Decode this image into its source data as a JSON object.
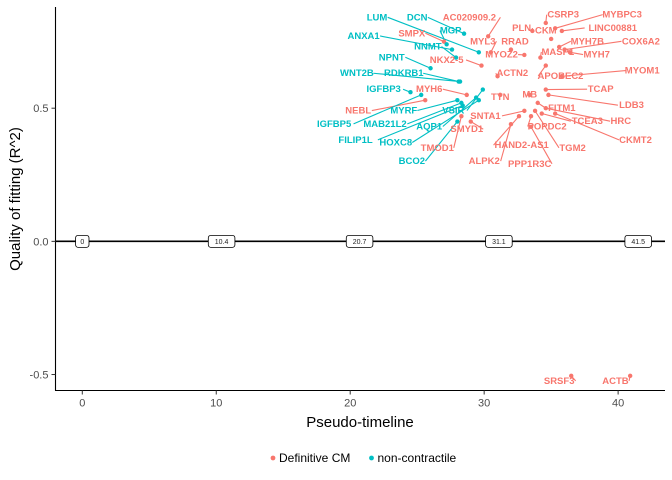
{
  "chart_data": {
    "type": "scatter",
    "xlabel": "Pseudo-timeline",
    "ylabel": "Quality of fitting (R^2)",
    "xlim": [
      -2,
      43.5
    ],
    "ylim": [
      -0.56,
      0.88
    ],
    "x_ticks": [
      0,
      10,
      20,
      30,
      40
    ],
    "y_ticks": [
      -0.5,
      0.0,
      0.5
    ],
    "y_tick_labels": [
      "-0.5",
      "0.0",
      "0.5"
    ],
    "grid": false,
    "legend_position": "bottom",
    "colors": {
      "Definitive CM": "#f8766d",
      "non-contractile": "#00bfc4"
    },
    "reference_line": {
      "y": 0,
      "markers": [
        {
          "x": 0,
          "label": "0"
        },
        {
          "x": 10.4,
          "label": "10.4"
        },
        {
          "x": 20.7,
          "label": "20.7"
        },
        {
          "x": 31.1,
          "label": "31.1"
        },
        {
          "x": 41.5,
          "label": "41.5"
        }
      ]
    },
    "series": [
      {
        "name": "Definitive CM",
        "points": [
          {
            "label": "MYBPC3",
            "x": 35.3,
            "y": 0.8,
            "lx": 40.3,
            "ly": 0.84
          },
          {
            "label": "CSRP3",
            "x": 34.6,
            "y": 0.82,
            "lx": 35.9,
            "ly": 0.84
          },
          {
            "label": "PLN",
            "x": 33.6,
            "y": 0.79,
            "lx": 32.8,
            "ly": 0.79
          },
          {
            "label": "CKM",
            "x": 35.0,
            "y": 0.76,
            "lx": 34.6,
            "ly": 0.78
          },
          {
            "label": "LINC00881",
            "x": 35.8,
            "y": 0.79,
            "lx": 39.6,
            "ly": 0.79
          },
          {
            "label": "AC020909.2",
            "x": 30.3,
            "y": 0.77,
            "lx": 28.9,
            "ly": 0.83
          },
          {
            "label": "SMPX",
            "x": 27.0,
            "y": 0.75,
            "lx": 24.6,
            "ly": 0.77
          },
          {
            "label": "MYL3",
            "x": 30.5,
            "y": 0.71,
            "lx": 29.9,
            "ly": 0.74
          },
          {
            "label": "RRAD",
            "x": 32.0,
            "y": 0.72,
            "lx": 32.3,
            "ly": 0.74
          },
          {
            "label": "MYH7B",
            "x": 35.6,
            "y": 0.73,
            "lx": 37.7,
            "ly": 0.74
          },
          {
            "label": "COX6A2",
            "x": 36.0,
            "y": 0.72,
            "lx": 41.7,
            "ly": 0.74
          },
          {
            "label": "MASP1",
            "x": 34.2,
            "y": 0.69,
            "lx": 35.5,
            "ly": 0.7
          },
          {
            "label": "MYOZ2",
            "x": 33.0,
            "y": 0.7,
            "lx": 31.3,
            "ly": 0.69
          },
          {
            "label": "MYH7",
            "x": 36.4,
            "y": 0.71,
            "lx": 38.4,
            "ly": 0.69
          },
          {
            "label": "NKX2-5",
            "x": 29.8,
            "y": 0.66,
            "lx": 27.2,
            "ly": 0.67
          },
          {
            "label": "ACTN2",
            "x": 31.0,
            "y": 0.62,
            "lx": 32.1,
            "ly": 0.62
          },
          {
            "label": "APOBEC2",
            "x": 34.6,
            "y": 0.66,
            "lx": 35.7,
            "ly": 0.61
          },
          {
            "label": "MYOM1",
            "x": 35.8,
            "y": 0.62,
            "lx": 41.8,
            "ly": 0.63
          },
          {
            "label": "TCAP",
            "x": 34.6,
            "y": 0.57,
            "lx": 38.7,
            "ly": 0.56
          },
          {
            "label": "MYH6",
            "x": 28.7,
            "y": 0.55,
            "lx": 25.9,
            "ly": 0.56
          },
          {
            "label": "TTN",
            "x": 31.2,
            "y": 0.55,
            "lx": 31.2,
            "ly": 0.53
          },
          {
            "label": "MB",
            "x": 33.4,
            "y": 0.55,
            "lx": 33.4,
            "ly": 0.54
          },
          {
            "label": "LDB3",
            "x": 34.8,
            "y": 0.55,
            "lx": 41.0,
            "ly": 0.5
          },
          {
            "label": "NEBL",
            "x": 25.6,
            "y": 0.53,
            "lx": 20.6,
            "ly": 0.48
          },
          {
            "label": "FITM1",
            "x": 34.0,
            "y": 0.52,
            "lx": 35.8,
            "ly": 0.49
          },
          {
            "label": "SNTA1",
            "x": 33.0,
            "y": 0.49,
            "lx": 30.1,
            "ly": 0.46
          },
          {
            "label": "TCEA3",
            "x": 34.3,
            "y": 0.48,
            "lx": 37.7,
            "ly": 0.44
          },
          {
            "label": "HRC",
            "x": 34.6,
            "y": 0.5,
            "lx": 40.2,
            "ly": 0.44
          },
          {
            "label": "SMYD1",
            "x": 29.0,
            "y": 0.45,
            "lx": 28.7,
            "ly": 0.41
          },
          {
            "label": "POPDC2",
            "x": 33.5,
            "y": 0.47,
            "lx": 34.7,
            "ly": 0.42
          },
          {
            "label": "CKMT2",
            "x": 35.3,
            "y": 0.48,
            "lx": 41.3,
            "ly": 0.37
          },
          {
            "label": "HAND2-AS1",
            "x": 32.6,
            "y": 0.47,
            "lx": 32.8,
            "ly": 0.35
          },
          {
            "label": "TGM2",
            "x": 33.8,
            "y": 0.49,
            "lx": 36.6,
            "ly": 0.34
          },
          {
            "label": "TMOD1",
            "x": 28.3,
            "y": 0.47,
            "lx": 26.5,
            "ly": 0.34
          },
          {
            "label": "ALPK2",
            "x": 32.0,
            "y": 0.44,
            "lx": 30.0,
            "ly": 0.29
          },
          {
            "label": "PPP1R3C",
            "x": 33.5,
            "y": 0.43,
            "lx": 33.4,
            "ly": 0.28
          },
          {
            "label": "SRSF3",
            "x": 36.5,
            "y": -0.505,
            "lx": 35.6,
            "ly": -0.535
          },
          {
            "label": "ACTB",
            "x": 40.9,
            "y": -0.505,
            "lx": 39.8,
            "ly": -0.535
          }
        ]
      },
      {
        "name": "non-contractile",
        "points": [
          {
            "label": "LUM",
            "x": 29.6,
            "y": 0.71,
            "lx": 22.0,
            "ly": 0.83
          },
          {
            "label": "DCN",
            "x": 28.5,
            "y": 0.78,
            "lx": 25.0,
            "ly": 0.83
          },
          {
            "label": "MGP",
            "x": 27.2,
            "y": 0.74,
            "lx": 27.5,
            "ly": 0.78
          },
          {
            "label": "ANXA1",
            "x": 27.6,
            "y": 0.72,
            "lx": 21.0,
            "ly": 0.76
          },
          {
            "label": "NNMT",
            "x": 27.9,
            "y": 0.69,
            "lx": 25.8,
            "ly": 0.72
          },
          {
            "label": "NPNT",
            "x": 26.0,
            "y": 0.65,
            "lx": 23.1,
            "ly": 0.68
          },
          {
            "label": "WNT2B",
            "x": 28.2,
            "y": 0.6,
            "lx": 20.5,
            "ly": 0.62
          },
          {
            "label": "RDKRB1",
            "x": 28.1,
            "y": 0.6,
            "lx": 24.0,
            "ly": 0.62
          },
          {
            "label": "IGFBP3",
            "x": 24.5,
            "y": 0.56,
            "lx": 22.5,
            "ly": 0.56
          },
          {
            "label": "MYRF",
            "x": 28.0,
            "y": 0.53,
            "lx": 24.0,
            "ly": 0.48
          },
          {
            "label": "VSIR",
            "x": 29.9,
            "y": 0.57,
            "lx": 27.7,
            "ly": 0.48
          },
          {
            "label": "IGFBP5",
            "x": 25.3,
            "y": 0.55,
            "lx": 18.8,
            "ly": 0.43
          },
          {
            "label": "MAB21L2",
            "x": 28.3,
            "y": 0.52,
            "lx": 22.6,
            "ly": 0.43
          },
          {
            "label": "AQP1",
            "x": 29.4,
            "y": 0.54,
            "lx": 25.9,
            "ly": 0.42
          },
          {
            "label": "FILIP1L",
            "x": 28.4,
            "y": 0.51,
            "lx": 20.4,
            "ly": 0.37
          },
          {
            "label": "HOXC8",
            "x": 29.6,
            "y": 0.53,
            "lx": 23.4,
            "ly": 0.36
          },
          {
            "label": "BCO2",
            "x": 28.0,
            "y": 0.45,
            "lx": 24.6,
            "ly": 0.29
          }
        ]
      }
    ]
  }
}
